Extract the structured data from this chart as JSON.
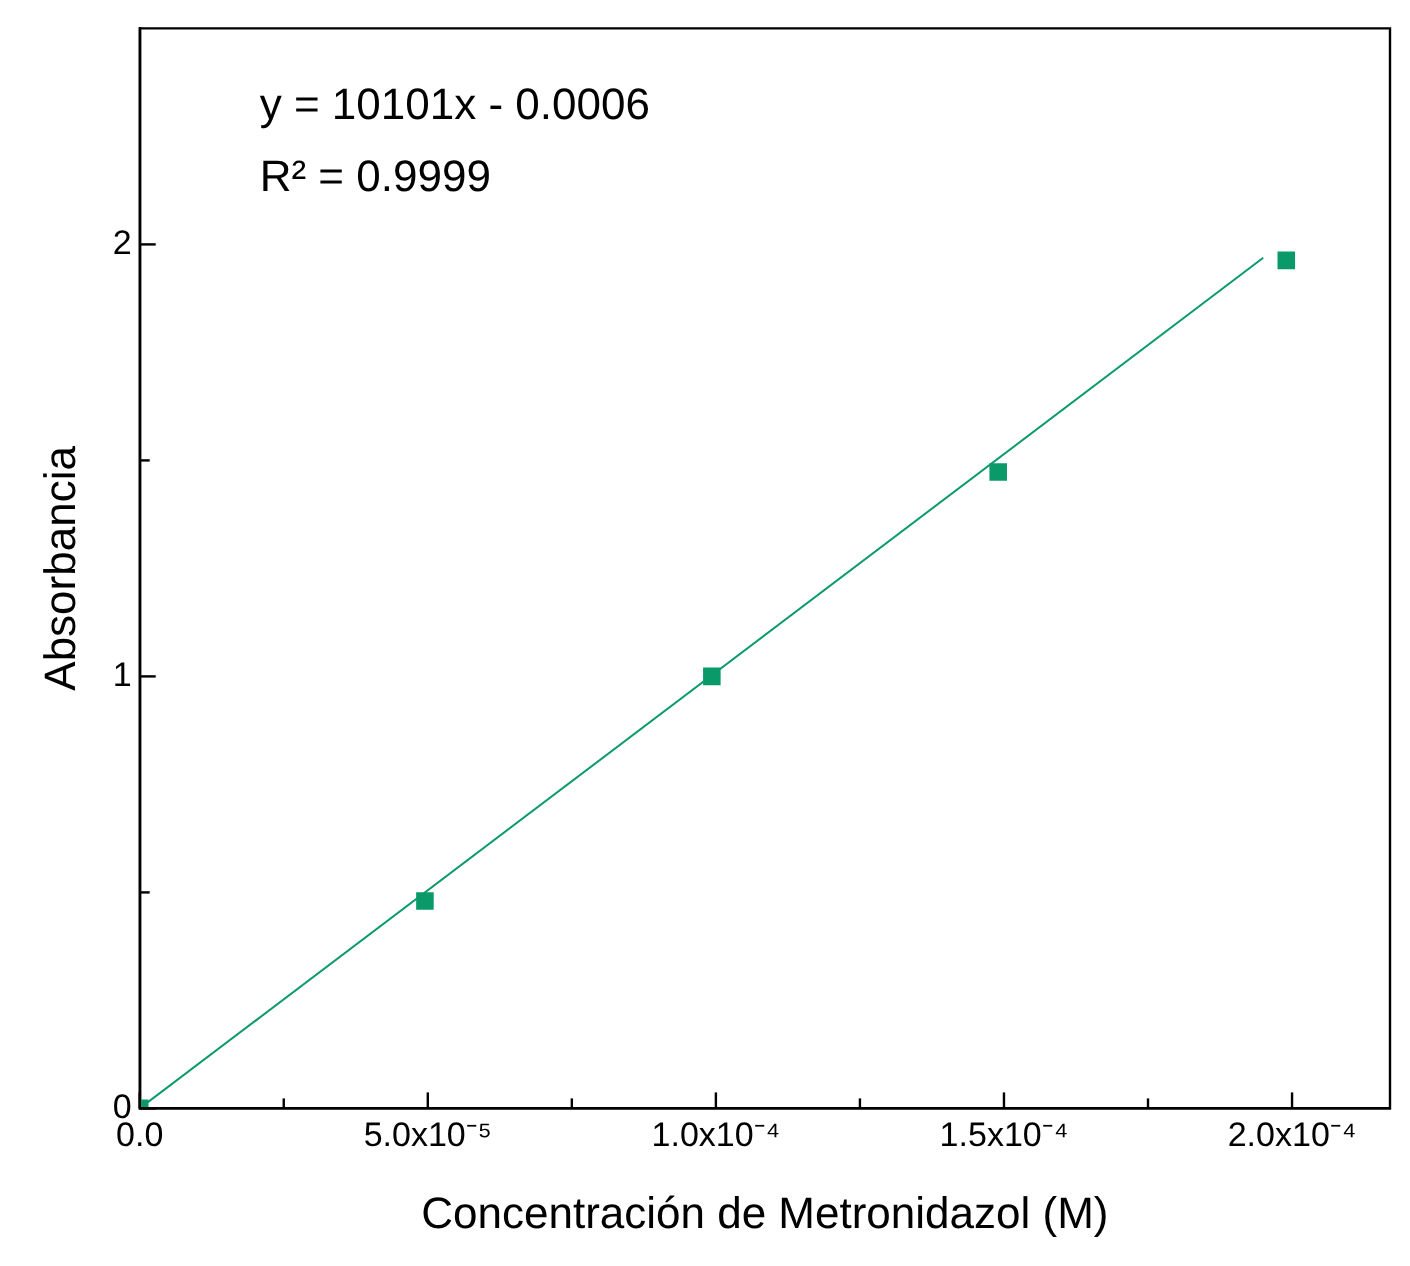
{
  "chart_data": {
    "type": "scatter",
    "xlabel": "Concentración de Metronidazol (M)",
    "ylabel": "Absorbancia",
    "xlim": [
      0,
      0.000217
    ],
    "ylim": [
      0,
      2.5
    ],
    "xticks": [
      {
        "value": 0,
        "label": "0.0"
      },
      {
        "value": 2.5e-05,
        "label": null
      },
      {
        "value": 5e-05,
        "label": "5.0x10⁻⁵"
      },
      {
        "value": 7.5e-05,
        "label": null
      },
      {
        "value": 0.0001,
        "label": "1.0x10⁻⁴"
      },
      {
        "value": 0.000125,
        "label": null
      },
      {
        "value": 0.00015,
        "label": "1.5x10⁻⁴"
      },
      {
        "value": 0.000175,
        "label": null
      },
      {
        "value": 0.0002,
        "label": "2.0x10⁻⁴"
      }
    ],
    "yticks": [
      0,
      {
        "value": 0.5,
        "label": null
      },
      1,
      {
        "value": 1.5,
        "label": null
      },
      2
    ],
    "series": [
      {
        "type": "scatter",
        "color": "#0a9a6a",
        "marker": "square",
        "x": [
          0,
          4.95e-05,
          9.93e-05,
          0.000149,
          0.000199
        ],
        "values": [
          0,
          0.48,
          1.0,
          1.473,
          1.963
        ]
      },
      {
        "type": "line",
        "color": "#0a9a6a",
        "marker": "none",
        "x": [
          0,
          0.000195
        ],
        "values": [
          0,
          1.969
        ]
      }
    ],
    "annotations": [
      "y = 10101x - 0.0006",
      "R² = 0.9999"
    ],
    "legend": false
  }
}
